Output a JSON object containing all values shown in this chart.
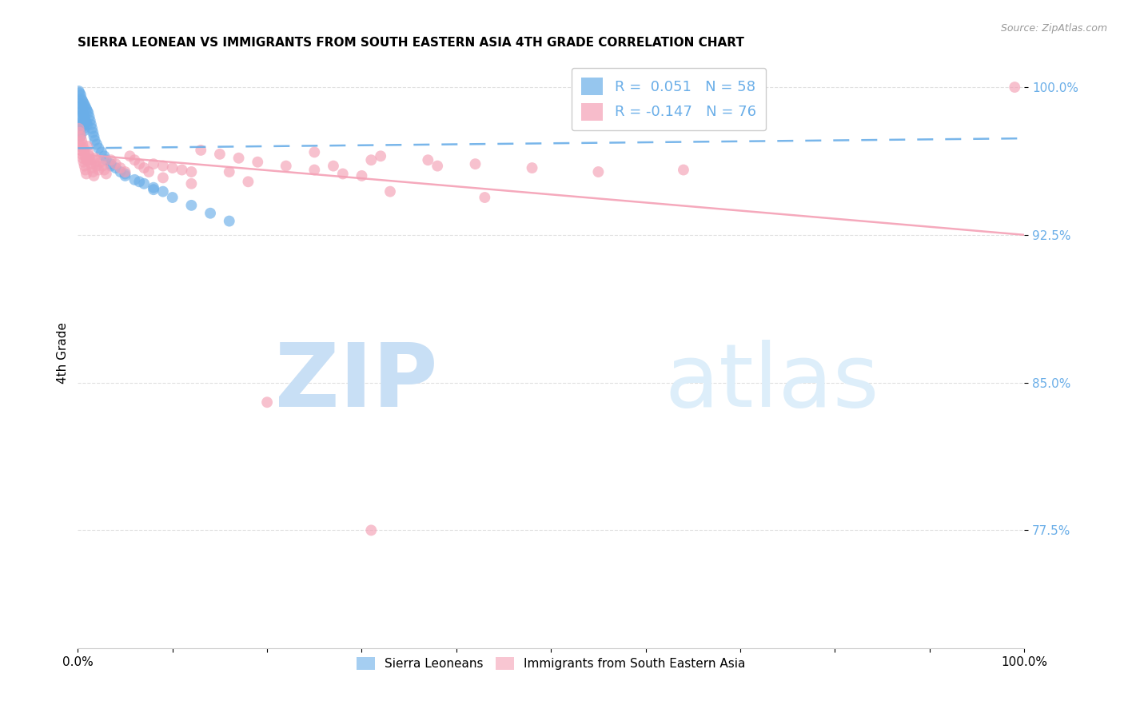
{
  "title": "SIERRA LEONEAN VS IMMIGRANTS FROM SOUTH EASTERN ASIA 4TH GRADE CORRELATION CHART",
  "source": "Source: ZipAtlas.com",
  "ylabel": "4th Grade",
  "xlim": [
    0.0,
    1.0
  ],
  "ylim": [
    0.715,
    1.015
  ],
  "yticks": [
    0.775,
    0.85,
    0.925,
    1.0
  ],
  "ytick_labels": [
    "77.5%",
    "85.0%",
    "92.5%",
    "100.0%"
  ],
  "xtick_labels": [
    "0.0%",
    "",
    "",
    "",
    "",
    "",
    "",
    "",
    "",
    "",
    "100.0%"
  ],
  "legend_label_blue": "Sierra Leoneans",
  "legend_label_pink": "Immigrants from South Eastern Asia",
  "R_blue": 0.051,
  "N_blue": 58,
  "R_pink": -0.147,
  "N_pink": 76,
  "blue_color": "#6aaee8",
  "pink_color": "#f4a0b5",
  "blue_trend_y_start": 0.969,
  "blue_trend_y_end": 0.974,
  "pink_trend_y_start": 0.966,
  "pink_trend_y_end": 0.925,
  "blue_scatter_x": [
    0.001,
    0.001,
    0.001,
    0.002,
    0.002,
    0.002,
    0.002,
    0.003,
    0.003,
    0.003,
    0.003,
    0.004,
    0.004,
    0.004,
    0.005,
    0.005,
    0.005,
    0.006,
    0.006,
    0.006,
    0.007,
    0.007,
    0.007,
    0.008,
    0.008,
    0.009,
    0.009,
    0.01,
    0.01,
    0.011,
    0.012,
    0.013,
    0.014,
    0.015,
    0.016,
    0.017,
    0.018,
    0.02,
    0.022,
    0.025,
    0.028,
    0.03,
    0.035,
    0.04,
    0.045,
    0.05,
    0.06,
    0.07,
    0.08,
    0.09,
    0.035,
    0.05,
    0.065,
    0.08,
    0.1,
    0.12,
    0.14,
    0.16
  ],
  "blue_scatter_y": [
    0.998,
    0.992,
    0.985,
    0.997,
    0.99,
    0.983,
    0.977,
    0.996,
    0.989,
    0.982,
    0.975,
    0.994,
    0.988,
    0.981,
    0.993,
    0.987,
    0.98,
    0.992,
    0.986,
    0.979,
    0.991,
    0.985,
    0.978,
    0.99,
    0.983,
    0.989,
    0.982,
    0.988,
    0.981,
    0.987,
    0.985,
    0.983,
    0.981,
    0.979,
    0.977,
    0.975,
    0.973,
    0.971,
    0.969,
    0.967,
    0.965,
    0.963,
    0.961,
    0.959,
    0.957,
    0.955,
    0.953,
    0.951,
    0.949,
    0.947,
    0.96,
    0.956,
    0.952,
    0.948,
    0.944,
    0.94,
    0.936,
    0.932
  ],
  "pink_scatter_x": [
    0.001,
    0.001,
    0.002,
    0.002,
    0.003,
    0.003,
    0.004,
    0.004,
    0.005,
    0.005,
    0.006,
    0.006,
    0.007,
    0.007,
    0.008,
    0.008,
    0.009,
    0.009,
    0.01,
    0.01,
    0.011,
    0.012,
    0.013,
    0.014,
    0.015,
    0.016,
    0.017,
    0.018,
    0.019,
    0.02,
    0.022,
    0.024,
    0.026,
    0.028,
    0.03,
    0.035,
    0.04,
    0.045,
    0.05,
    0.055,
    0.06,
    0.065,
    0.07,
    0.075,
    0.08,
    0.09,
    0.1,
    0.11,
    0.12,
    0.13,
    0.15,
    0.17,
    0.19,
    0.22,
    0.25,
    0.28,
    0.32,
    0.37,
    0.42,
    0.48,
    0.55,
    0.27,
    0.99,
    0.64,
    0.3,
    0.18,
    0.25,
    0.31,
    0.38,
    0.16,
    0.09,
    0.12,
    0.2,
    0.33,
    0.43,
    0.31
  ],
  "pink_scatter_y": [
    0.979,
    0.972,
    0.977,
    0.97,
    0.975,
    0.968,
    0.973,
    0.966,
    0.971,
    0.964,
    0.969,
    0.962,
    0.967,
    0.96,
    0.965,
    0.958,
    0.963,
    0.956,
    0.97,
    0.963,
    0.967,
    0.965,
    0.963,
    0.961,
    0.959,
    0.957,
    0.955,
    0.964,
    0.962,
    0.96,
    0.958,
    0.962,
    0.96,
    0.958,
    0.956,
    0.963,
    0.961,
    0.959,
    0.957,
    0.965,
    0.963,
    0.961,
    0.959,
    0.957,
    0.961,
    0.96,
    0.959,
    0.958,
    0.957,
    0.968,
    0.966,
    0.964,
    0.962,
    0.96,
    0.958,
    0.956,
    0.965,
    0.963,
    0.961,
    0.959,
    0.957,
    0.96,
    1.0,
    0.958,
    0.955,
    0.952,
    0.967,
    0.963,
    0.96,
    0.957,
    0.954,
    0.951,
    0.84,
    0.947,
    0.944,
    0.775
  ]
}
